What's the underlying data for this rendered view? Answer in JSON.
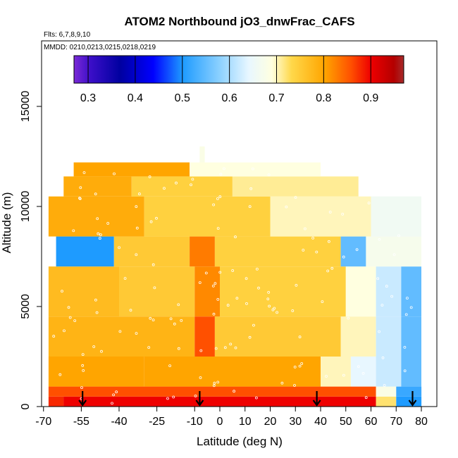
{
  "chart_data": {
    "type": "heatmap",
    "title": "ATOM2 Northbound jO3_dnwFrac_CAFS",
    "subtitle": "Flts: 6,7,8,9,10",
    "annotation": "MMDD: 0210,0213,0215,0218,0219",
    "xlabel": "Latitude (deg N)",
    "ylabel": "Altitude (m)",
    "xlim": [
      -70,
      85
    ],
    "ylim": [
      0,
      17500
    ],
    "x_ticks": [
      -70,
      -55,
      -40,
      -25,
      -10,
      0,
      10,
      20,
      30,
      40,
      50,
      60,
      70,
      80
    ],
    "y_ticks": [
      0,
      5000,
      10000,
      15000
    ],
    "colorbar": {
      "range": [
        0.27,
        0.97
      ],
      "ticks": [
        0.3,
        0.4,
        0.5,
        0.6,
        0.7,
        0.8,
        0.9
      ],
      "placement": "top, inside plot",
      "colors": [
        "#6a0dd6",
        "#0000a8",
        "#0000ff",
        "#1e90ff",
        "#87cefa",
        "#ffffff",
        "#ffff99",
        "#ffa500",
        "#ff0000",
        "#a52a2a"
      ]
    },
    "flight_markers_lat": [
      -54.5,
      -8,
      38.5,
      76.5
    ],
    "grid": false,
    "altitude_bins_m": [
      0,
      500,
      1000,
      1500,
      2000,
      2500,
      3000,
      3500,
      4000,
      4500,
      5000,
      5500,
      6000,
      6500,
      7000,
      7500,
      8000,
      8500,
      9000,
      9500,
      10000,
      10500,
      11000,
      11500,
      12000,
      12500
    ],
    "series": [
      {
        "name": "",
        "x_range": [
          -68,
          82
        ],
        "values": []
      }
    ],
    "cells": [
      {
        "lat": [
          -68,
          -62
        ],
        "alt": [
          0,
          500
        ],
        "v": 0.88
      },
      {
        "lat": [
          -62,
          62
        ],
        "alt": [
          0,
          500
        ],
        "v": 0.9
      },
      {
        "lat": [
          62,
          70
        ],
        "alt": [
          0,
          500
        ],
        "v": 0.72
      },
      {
        "lat": [
          70,
          80
        ],
        "alt": [
          0,
          500
        ],
        "v": 0.5
      },
      {
        "lat": [
          -68,
          62
        ],
        "alt": [
          500,
          1000
        ],
        "v": 0.86
      },
      {
        "lat": [
          62,
          70
        ],
        "alt": [
          500,
          1000
        ],
        "v": 0.68
      },
      {
        "lat": [
          70,
          80
        ],
        "alt": [
          500,
          1000
        ],
        "v": 0.52
      },
      {
        "lat": [
          -68,
          -30
        ],
        "alt": [
          1000,
          2500
        ],
        "v": 0.8
      },
      {
        "lat": [
          -30,
          40
        ],
        "alt": [
          1000,
          2500
        ],
        "v": 0.8
      },
      {
        "lat": [
          40,
          52
        ],
        "alt": [
          1000,
          2500
        ],
        "v": 0.7
      },
      {
        "lat": [
          52,
          62
        ],
        "alt": [
          1000,
          2500
        ],
        "v": 0.64
      },
      {
        "lat": [
          62,
          72
        ],
        "alt": [
          1000,
          2500
        ],
        "v": 0.62
      },
      {
        "lat": [
          72,
          80
        ],
        "alt": [
          1000,
          2500
        ],
        "v": 0.55
      },
      {
        "lat": [
          -68,
          -10
        ],
        "alt": [
          2500,
          4500
        ],
        "v": 0.78
      },
      {
        "lat": [
          -10,
          -2
        ],
        "alt": [
          2500,
          4500
        ],
        "v": 0.86
      },
      {
        "lat": [
          -2,
          48
        ],
        "alt": [
          2500,
          4500
        ],
        "v": 0.75
      },
      {
        "lat": [
          48,
          62
        ],
        "alt": [
          2500,
          4500
        ],
        "v": 0.7
      },
      {
        "lat": [
          62,
          72
        ],
        "alt": [
          2500,
          4500
        ],
        "v": 0.62
      },
      {
        "lat": [
          72,
          80
        ],
        "alt": [
          2500,
          4500
        ],
        "v": 0.55
      },
      {
        "lat": [
          -68,
          -40
        ],
        "alt": [
          4500,
          7000
        ],
        "v": 0.77
      },
      {
        "lat": [
          -40,
          -10
        ],
        "alt": [
          4500,
          7000
        ],
        "v": 0.75
      },
      {
        "lat": [
          -10,
          0
        ],
        "alt": [
          4500,
          7000
        ],
        "v": 0.82
      },
      {
        "lat": [
          0,
          50
        ],
        "alt": [
          4500,
          7000
        ],
        "v": 0.74
      },
      {
        "lat": [
          50,
          62
        ],
        "alt": [
          4500,
          7000
        ],
        "v": 0.69
      },
      {
        "lat": [
          62,
          72
        ],
        "alt": [
          4500,
          7000
        ],
        "v": 0.62
      },
      {
        "lat": [
          72,
          80
        ],
        "alt": [
          4500,
          7000
        ],
        "v": 0.55
      },
      {
        "lat": [
          -65,
          -42
        ],
        "alt": [
          7000,
          8500
        ],
        "v": 0.5
      },
      {
        "lat": [
          -42,
          -12
        ],
        "alt": [
          7000,
          8500
        ],
        "v": 0.75
      },
      {
        "lat": [
          -12,
          -2
        ],
        "alt": [
          7000,
          8500
        ],
        "v": 0.83
      },
      {
        "lat": [
          -2,
          48
        ],
        "alt": [
          7000,
          8500
        ],
        "v": 0.74
      },
      {
        "lat": [
          48,
          58
        ],
        "alt": [
          7000,
          8500
        ],
        "v": 0.55
      },
      {
        "lat": [
          58,
          80
        ],
        "alt": [
          7000,
          8500
        ],
        "v": 0.67
      },
      {
        "lat": [
          -68,
          -30
        ],
        "alt": [
          8500,
          10500
        ],
        "v": 0.79
      },
      {
        "lat": [
          -30,
          20
        ],
        "alt": [
          8500,
          10500
        ],
        "v": 0.74
      },
      {
        "lat": [
          20,
          60
        ],
        "alt": [
          8500,
          10500
        ],
        "v": 0.7
      },
      {
        "lat": [
          60,
          80
        ],
        "alt": [
          8500,
          10500
        ],
        "v": 0.66
      },
      {
        "lat": [
          -62,
          -35
        ],
        "alt": [
          10500,
          11500
        ],
        "v": 0.79
      },
      {
        "lat": [
          -35,
          5
        ],
        "alt": [
          10500,
          11500
        ],
        "v": 0.74
      },
      {
        "lat": [
          5,
          55
        ],
        "alt": [
          10500,
          11500
        ],
        "v": 0.71
      },
      {
        "lat": [
          -58,
          -12
        ],
        "alt": [
          11500,
          12200
        ],
        "v": 0.8
      },
      {
        "lat": [
          -12,
          40
        ],
        "alt": [
          11500,
          12200
        ],
        "v": 0.69
      },
      {
        "lat": [
          -8,
          -6
        ],
        "alt": [
          12200,
          13000
        ],
        "v": 0.68
      }
    ]
  }
}
